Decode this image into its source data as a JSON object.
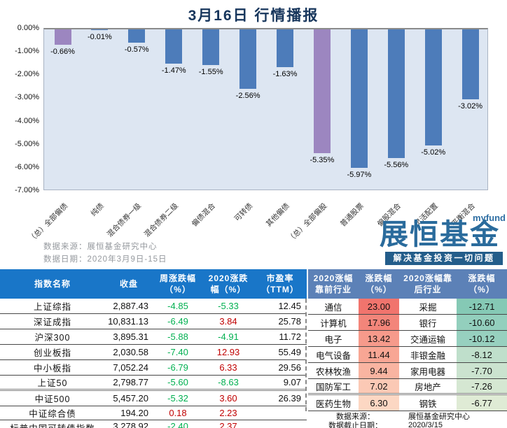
{
  "title": "3月16日 行情播报",
  "chart_data": {
    "type": "bar",
    "title": "3月16日 行情播报",
    "categories": [
      "（总）全部偏债",
      "纯债",
      "混合债券一级",
      "混合债券二级",
      "偏债混合",
      "可转债",
      "其他偏债",
      "（总）全部偏股",
      "普通股票",
      "偏股混合",
      "灵活配置",
      "平衡混合"
    ],
    "values": [
      -0.66,
      -0.01,
      -0.57,
      -1.47,
      -1.55,
      -2.56,
      -1.63,
      -5.35,
      -5.97,
      -5.56,
      -5.02,
      -3.02
    ],
    "labels": [
      "-0.66%",
      "-0.01%",
      "-0.57%",
      "-1.47%",
      "-1.55%",
      "-2.56%",
      "-1.63%",
      "-5.35%",
      "-5.97%",
      "-5.56%",
      "-5.02%",
      "-3.02%"
    ],
    "bar_colors": [
      "#9c86c0",
      "#4d7cba",
      "#4d7cba",
      "#4d7cba",
      "#4d7cba",
      "#4d7cba",
      "#4d7cba",
      "#9c86c0",
      "#4d7cba",
      "#4d7cba",
      "#4d7cba",
      "#4d7cba"
    ],
    "ylim": [
      -7,
      0
    ],
    "yticks": [
      "0.00%",
      "-1.00%",
      "-2.00%",
      "-3.00%",
      "-4.00%",
      "-5.00%",
      "-6.00%",
      "-7.00%"
    ],
    "plot_bg": "#dde6f2",
    "grid": "off",
    "source_note": "数据来源：展恒基金研究中心",
    "date_note": "数据日期：2020年3月9日-15日"
  },
  "logo": {
    "brand_small": "myfund",
    "brand_name": "展恒基金",
    "tagline": "解决基金投资一切问题",
    "color": "#2a6b9c"
  },
  "index_table": {
    "header_bg": "#1976c8",
    "headers": [
      "指数名称",
      "收盘",
      "周涨跌幅\n（%）",
      "2020涨跌\n幅（%）",
      "市盈率\n（TTM）"
    ],
    "positive_color": "#c00000",
    "negative_color": "#00b050",
    "rows": [
      {
        "name": "上证综指",
        "close": "2,887.43",
        "week": "-4.85",
        "week_color": "#00b050",
        "ytd": "-5.33",
        "ytd_color": "#00b050",
        "pe": "12.45"
      },
      {
        "name": "深证成指",
        "close": "10,831.13",
        "week": "-6.49",
        "week_color": "#00b050",
        "ytd": "3.84",
        "ytd_color": "#c00000",
        "pe": "25.78"
      },
      {
        "name": "沪深300",
        "close": "3,895.31",
        "week": "-5.88",
        "week_color": "#00b050",
        "ytd": "-4.91",
        "ytd_color": "#00b050",
        "pe": "11.72"
      },
      {
        "name": "创业板指",
        "close": "2,030.58",
        "week": "-7.40",
        "week_color": "#00b050",
        "ytd": "12.93",
        "ytd_color": "#c00000",
        "pe": "55.49"
      },
      {
        "name": "中小板指",
        "close": "7,052.24",
        "week": "-6.79",
        "week_color": "#00b050",
        "ytd": "6.33",
        "ytd_color": "#c00000",
        "pe": "29.56"
      },
      {
        "name": "上证50",
        "close": "2,798.77",
        "week": "-5.60",
        "week_color": "#00b050",
        "ytd": "-8.63",
        "ytd_color": "#00b050",
        "pe": "9.07"
      },
      {
        "name": "中证500",
        "close": "5,457.20",
        "week": "-5.32",
        "week_color": "#00b050",
        "ytd": "3.60",
        "ytd_color": "#c00000",
        "pe": "26.39"
      },
      {
        "name": "中证综合债",
        "close": "194.20",
        "week": "0.18",
        "week_color": "#c00000",
        "ytd": "2.23",
        "ytd_color": "#c00000",
        "pe": ""
      },
      {
        "name": "标普中国可转债指数",
        "close": "3,278.92",
        "week": "-2.40",
        "week_color": "#00b050",
        "ytd": "2.37",
        "ytd_color": "#c00000",
        "pe": ""
      }
    ]
  },
  "sector_table": {
    "header_bg": "#5c81b7",
    "headers": [
      "2020涨幅\n靠前行业",
      "涨跌幅\n（%）",
      "2020涨幅靠\n后行业",
      "涨跌幅\n（%）"
    ],
    "rows": [
      {
        "top": "通信",
        "top_val": "23.00",
        "top_bg": "#f1746d",
        "bottom": "采掘",
        "bottom_val": "-12.71",
        "bottom_bg": "#85c9b5"
      },
      {
        "top": "计算机",
        "top_val": "17.96",
        "top_bg": "#f3857a",
        "bottom": "银行",
        "bottom_val": "-10.60",
        "bottom_bg": "#93cfbd"
      },
      {
        "top": "电子",
        "top_val": "13.42",
        "top_bg": "#f69a8b",
        "bottom": "交通运输",
        "bottom_val": "-10.12",
        "bottom_bg": "#97d0bf"
      },
      {
        "top": "电气设备",
        "top_val": "11.44",
        "top_bg": "#f8a694",
        "bottom": "非银金融",
        "bottom_val": "-8.12",
        "bottom_bg": "#bfdfcb"
      },
      {
        "top": "农林牧渔",
        "top_val": "9.44",
        "top_bg": "#f9b4a1",
        "bottom": "家用电器",
        "bottom_val": "-7.70",
        "bottom_bg": "#cbe3cf"
      },
      {
        "top": "国防军工",
        "top_val": "7.02",
        "top_bg": "#fbc9b5",
        "bottom": "房地产",
        "bottom_val": "-7.26",
        "bottom_bg": "#d5e7d2"
      },
      {
        "top": "医药生物",
        "top_val": "6.30",
        "top_bg": "#fcd7c3",
        "bottom": "钢铁",
        "bottom_val": "-6.77",
        "bottom_bg": "#dfebd5"
      }
    ],
    "footer": {
      "source_label": "数据来源：",
      "source_value": "展恒基金研究中心",
      "date_label": "数据截止日期：",
      "date_value": "2020/3/15"
    }
  }
}
